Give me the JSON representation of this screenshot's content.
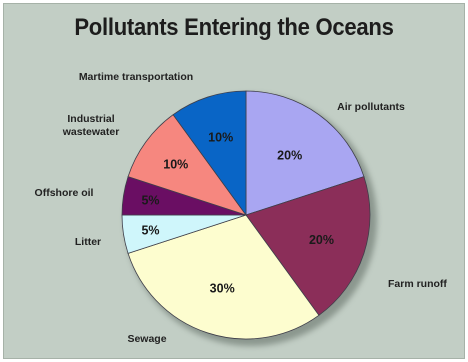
{
  "chart_data": {
    "type": "pie",
    "title": "Pollutants Entering the Oceans",
    "categories": [
      "Air pollutants",
      "Farm runoff",
      "Sewage",
      "Litter",
      "Offshore oil",
      "Industrial wastewater",
      "Martime transportation"
    ],
    "values": [
      20,
      20,
      30,
      5,
      5,
      10,
      10
    ],
    "value_labels": [
      "20%",
      "20%",
      "30%",
      "5%",
      "5%",
      "10%",
      "10%"
    ],
    "colors": [
      "#a9a6f2",
      "#8b2e59",
      "#fdfdcf",
      "#cff6fb",
      "#6a0e63",
      "#f6877f",
      "#0965c6"
    ],
    "start_angle_deg": 0,
    "direction": "clockwise"
  }
}
